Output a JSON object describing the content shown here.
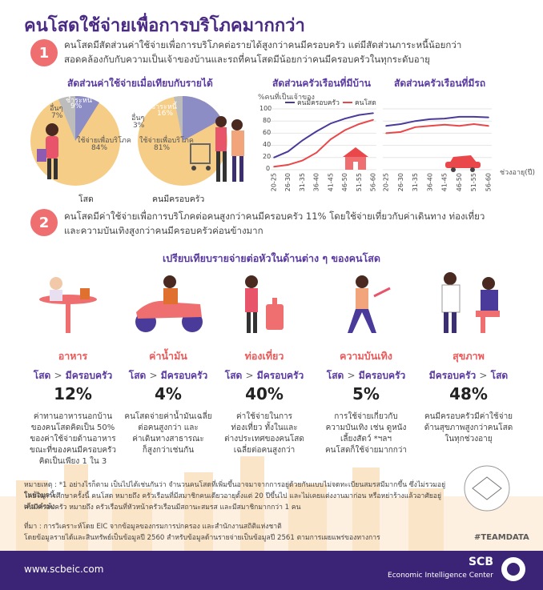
{
  "title": "คนโสดใช้จ่ายเพื่อการบริโภคมากกว่า",
  "section1": {
    "number": "1",
    "text_line1": "คนโสดมีสัดส่วนค่าใช้จ่ายเพื่อการบริโภคต่อรายได้สูงกว่าคนมีครอบครัว แต่มีสัดส่วนภาระหนี้น้อยกว่า",
    "text_line2": "สอดคล้องกับกับความเป็นเจ้าของบ้านและรถที่คนโสดมีน้อยกว่าคนมีครอบครัวในทุกระดับอายุ"
  },
  "pie_section": {
    "heading": "สัดส่วนค่าใช้จ่ายเมื่อเทียบกับรายได้",
    "single": {
      "label": "โสด",
      "debt_label": "ชำระหนี้",
      "debt_value": "9%",
      "other_label": "อื่นๆ",
      "other_value": "7%",
      "consume_label": "ใช้จ่ายเพื่อบริโภค",
      "consume_value": "84%"
    },
    "family": {
      "label": "คนมีครอบครัว",
      "debt_label": "ชำระหนี้",
      "debt_value": "16%",
      "other_label": "อื่นๆ",
      "other_value": "3%",
      "consume_label": "ใช้จ่ายเพื่อบริโภค",
      "consume_value": "81%"
    }
  },
  "chart_data": [
    {
      "type": "line",
      "title": "สัดส่วนครัวเรือนที่มีบ้าน",
      "ylabel": "%คนที่เป็นเจ้าของ",
      "ylim": [
        0,
        100
      ],
      "yticks": [
        "100",
        "80",
        "60",
        "40",
        "20",
        "0"
      ],
      "categories": [
        "20-25",
        "26-30",
        "31-35",
        "36-40",
        "41-45",
        "46-50",
        "51-55",
        "56-60"
      ],
      "series": [
        {
          "name": "คนมีครอบครัว",
          "color": "#4a3a9a",
          "values": [
            20,
            30,
            48,
            63,
            76,
            84,
            90,
            93
          ]
        },
        {
          "name": "คนโสด",
          "color": "#e9474a",
          "values": [
            5,
            8,
            15,
            28,
            50,
            65,
            75,
            82
          ]
        }
      ]
    },
    {
      "type": "line",
      "title": "สัดส่วนครัวเรือนที่มีรถ",
      "xlabel": "ช่วงอายุ(ปี)",
      "ylim": [
        0,
        100
      ],
      "categories": [
        "20-25",
        "26-30",
        "31-35",
        "36-40",
        "41-45",
        "46-50",
        "51-55",
        "56-60"
      ],
      "series": [
        {
          "name": "คนมีครอบครัว",
          "color": "#4a3a9a",
          "values": [
            72,
            75,
            80,
            83,
            84,
            87,
            87,
            86
          ]
        },
        {
          "name": "คนโสด",
          "color": "#e9474a",
          "values": [
            60,
            62,
            70,
            72,
            74,
            72,
            75,
            72
          ]
        }
      ]
    }
  ],
  "section2": {
    "number": "2",
    "text_line1": "คนโสดมีค่าใช้จ่ายเพื่อการบริโภคต่อคนสูงกว่าคนมีครอบครัว 11% โดยใช้จ่ายเที่ยวกับค่าเดินทาง ท่องเที่ยว",
    "text_line2": "และความบันเทิงสูงกว่าคนมีครอบครัวค่อนข้างมาก"
  },
  "compare_heading": "เปรียบเทียบรายจ่ายต่อหัวในด้านต่าง ๆ ของคนโสด",
  "categories": [
    {
      "title": "อาหาร",
      "left": "โสด",
      "op": ">",
      "right": "มีครอบครัว",
      "pct": "12%",
      "desc": [
        "ค่าทานอาหารนอกบ้าน",
        "ของคนโสดคิดเป็น 50%",
        "ของค่าใช้จ่ายด้านอาหาร",
        "ขณะที่ของคนมีครอบครัว",
        "คิดเป็นเพียง 1 ใน 3"
      ]
    },
    {
      "title": "ค่าน้ำมัน",
      "left": "โสด",
      "op": ">",
      "right": "มีครอบครัว",
      "pct": "4%",
      "desc": [
        "คนโสดจ่ายค่าน้ำมันเฉลี่ย",
        "ต่อคนสูงกว่า และ",
        "ค่าเดินทางสาธารณะ",
        "ก็สูงกว่าเช่นกัน"
      ]
    },
    {
      "title": "ท่องเที่ยว",
      "left": "โสด",
      "op": ">",
      "right": "มีครอบครัว",
      "pct": "40%",
      "desc": [
        "ค่าใช้จ่ายในการ",
        "ท่องเที่ยว ทั้งในและ",
        "ต่างประเทศของคนโสด",
        "เฉลี่ยต่อคนสูงกว่า"
      ]
    },
    {
      "title": "ความบันเทิง",
      "left": "โสด",
      "op": ">",
      "right": "มีครอบครัว",
      "pct": "5%",
      "desc": [
        "การใช้จ่ายเกี่ยวกับ",
        "ความบันเทิง เช่น ดูหนัง",
        "เลี้ยงสัตว์ *ฯลฯ",
        "คนโสดก็ใช้จ่ายมากกว่า"
      ]
    },
    {
      "title": "สุขภาพ",
      "left": "มีครอบครัว",
      "op": ">",
      "right": "โสด",
      "pct": "48%",
      "desc": [
        "คนมีครอบครัวมีค่าใช้จ่าย",
        "ด้านสุขภาพสูงกว่าคนโสด",
        "ในทุกช่วงอายุ"
      ]
    }
  ],
  "notes": {
    "line1": "หมายเหตุ : *1 อย่างไรก็ตาม เป็นไปได้เช่นกันว่า จำนวนคนโสดที่เพิ่มขึ้นอาจมาจากการอยู่ด้วยกันแบบไม่จดทะเบียนสมรสมีมากขึ้น ซึ่งไม่รวมอยู่ในข้อมูลนี้",
    "line2": "โดยในการศึกษาครั้งนี้ คนโสด หมายถึง ครัวเรือนที่มีสมาชิกคนเดียวอายุตั้งแต่ 20 ปีขึ้นไป และไม่เคยแต่งงานมาก่อน หรือหย่าร้างแล้วอาศัยอยู่เดียวลำพัง",
    "line3": "คนมีครอบครัว หมายถึง ครัวเรือนที่หัวหน้าครัวเรือนมีสถานะสมรส และมีสมาชิกมากกว่า 1 คน",
    "source1": "ที่มา : การวิเคราะห์โดย EIC จากข้อมูลของกรมการปกครอง และสำนักงานสถิติแห่งชาติ",
    "source2": "โดยข้อมูลรายได้และสินทรัพย์เป็นข้อมูลปี 2560 สำหรับข้อมูลด้านรายจ่ายเป็นข้อมูลปี 2561 ตามการเผยแพร่ของทางการ"
  },
  "teamdata": "#TEAMDATA",
  "footer": {
    "url": "www.scbeic.com",
    "brand": "SCB",
    "subtitle": "Economic Intelligence Center"
  }
}
